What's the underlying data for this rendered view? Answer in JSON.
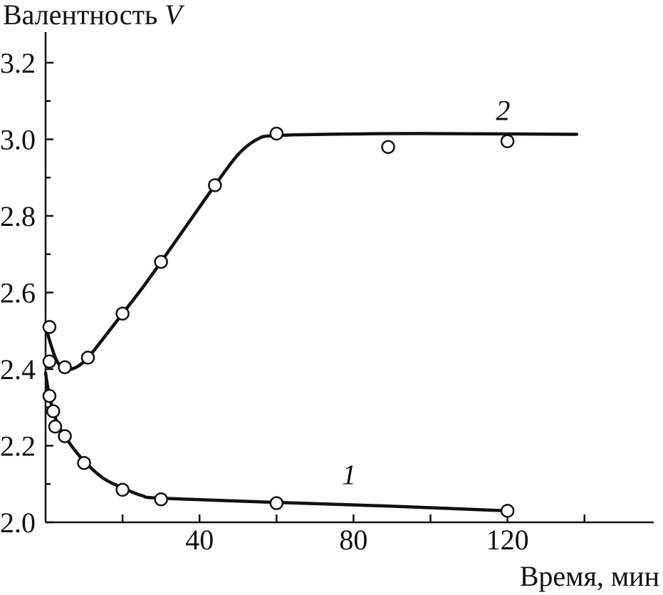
{
  "chart_data": {
    "type": "line",
    "title": "",
    "ylabel": "Валентность",
    "ylabel_symbol": "V",
    "xlabel": "Время, мин",
    "xlim": [
      0,
      158
    ],
    "ylim": [
      2.0,
      3.28
    ],
    "x_ticks": [
      20,
      40,
      60,
      80,
      100,
      120,
      140
    ],
    "x_tick_labels": [
      {
        "value": 40,
        "label": "40"
      },
      {
        "value": 80,
        "label": "80"
      },
      {
        "value": 120,
        "label": "120"
      }
    ],
    "y_ticks": [
      2.0,
      2.1,
      2.2,
      2.3,
      2.4,
      2.5,
      2.6,
      2.7,
      2.8,
      2.9,
      3.0,
      3.1,
      3.2
    ],
    "y_tick_labels": [
      {
        "value": 2.0,
        "label": "2.0"
      },
      {
        "value": 2.2,
        "label": "2.2"
      },
      {
        "value": 2.4,
        "label": "2.4"
      },
      {
        "value": 2.6,
        "label": "2.6"
      },
      {
        "value": 2.8,
        "label": "2.8"
      },
      {
        "value": 3.0,
        "label": "3.0"
      },
      {
        "value": 3.2,
        "label": "3.2"
      }
    ],
    "grid": false,
    "legend": "none",
    "series": [
      {
        "name": "1",
        "label_at": {
          "x": 77,
          "y": 2.1
        },
        "points": [
          {
            "x": 1,
            "y": 2.33
          },
          {
            "x": 2,
            "y": 2.29
          },
          {
            "x": 2.5,
            "y": 2.25
          },
          {
            "x": 5,
            "y": 2.225
          },
          {
            "x": 10,
            "y": 2.155
          },
          {
            "x": 20,
            "y": 2.085
          },
          {
            "x": 30,
            "y": 2.06
          },
          {
            "x": 60,
            "y": 2.05
          },
          {
            "x": 120,
            "y": 2.03
          }
        ],
        "curve": [
          {
            "x": 0,
            "y": 2.39
          },
          {
            "x": 1,
            "y": 2.33
          },
          {
            "x": 3,
            "y": 2.26
          },
          {
            "x": 6,
            "y": 2.21
          },
          {
            "x": 10,
            "y": 2.16
          },
          {
            "x": 15,
            "y": 2.115
          },
          {
            "x": 20,
            "y": 2.09
          },
          {
            "x": 25,
            "y": 2.07
          },
          {
            "x": 30,
            "y": 2.063
          },
          {
            "x": 60,
            "y": 2.052
          },
          {
            "x": 90,
            "y": 2.042
          },
          {
            "x": 120,
            "y": 2.03
          }
        ]
      },
      {
        "name": "2",
        "label_at": {
          "x": 117,
          "y": 3.05
        },
        "points": [
          {
            "x": 1,
            "y": 2.51
          },
          {
            "x": 1,
            "y": 2.42
          },
          {
            "x": 5,
            "y": 2.405
          },
          {
            "x": 11,
            "y": 2.43
          },
          {
            "x": 20,
            "y": 2.545
          },
          {
            "x": 30,
            "y": 2.68
          },
          {
            "x": 44,
            "y": 2.88
          },
          {
            "x": 60,
            "y": 3.015
          },
          {
            "x": 89,
            "y": 2.98
          },
          {
            "x": 120,
            "y": 2.995
          }
        ],
        "curve": [
          {
            "x": 0,
            "y": 2.51
          },
          {
            "x": 1.5,
            "y": 2.46
          },
          {
            "x": 3,
            "y": 2.42
          },
          {
            "x": 5,
            "y": 2.4
          },
          {
            "x": 8,
            "y": 2.405
          },
          {
            "x": 11,
            "y": 2.43
          },
          {
            "x": 15,
            "y": 2.48
          },
          {
            "x": 20,
            "y": 2.545
          },
          {
            "x": 25,
            "y": 2.61
          },
          {
            "x": 30,
            "y": 2.68
          },
          {
            "x": 37,
            "y": 2.78
          },
          {
            "x": 44,
            "y": 2.88
          },
          {
            "x": 50,
            "y": 2.96
          },
          {
            "x": 55,
            "y": 3.0
          },
          {
            "x": 60,
            "y": 3.01
          },
          {
            "x": 80,
            "y": 3.014
          },
          {
            "x": 100,
            "y": 3.015
          },
          {
            "x": 138,
            "y": 3.013
          }
        ]
      }
    ]
  }
}
